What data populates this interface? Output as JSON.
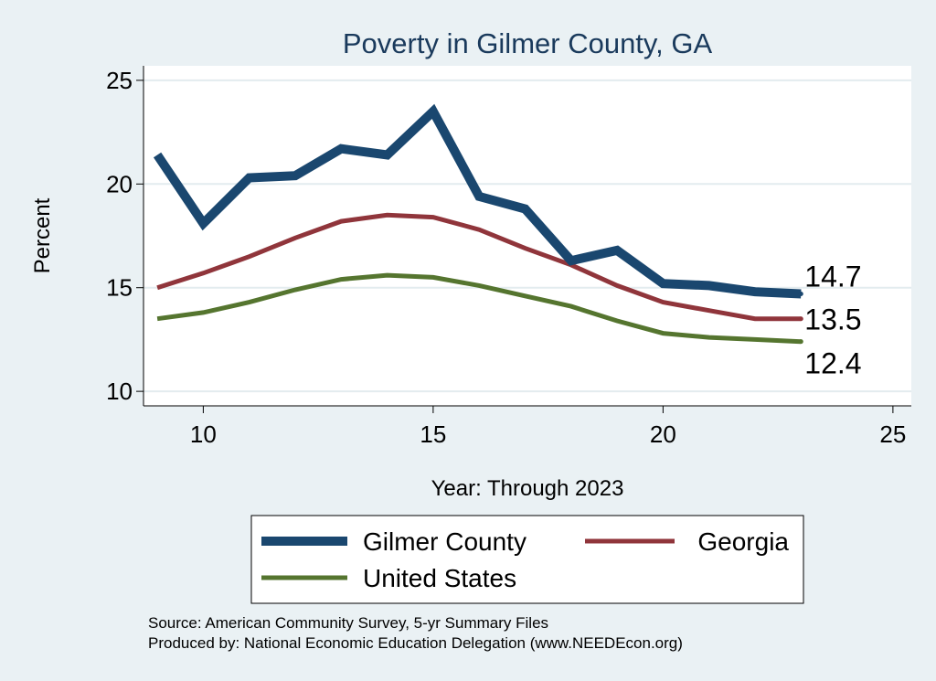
{
  "chart_data": {
    "type": "line",
    "title": "Poverty in Gilmer County, GA",
    "xlabel": "Year: Through 2023",
    "ylabel": "Percent",
    "xlim": [
      8.7,
      25.4
    ],
    "ylim": [
      9.3,
      25.7
    ],
    "xticks": [
      10,
      15,
      20,
      25
    ],
    "yticks": [
      10,
      15,
      20,
      25
    ],
    "grid": true,
    "legend_position": "bottom",
    "x": [
      9,
      10,
      11,
      12,
      13,
      14,
      15,
      16,
      17,
      18,
      19,
      20,
      21,
      22,
      23
    ],
    "series": [
      {
        "name": "Gilmer County",
        "color": "#1a476f",
        "values": [
          21.4,
          18.1,
          20.3,
          20.4,
          21.7,
          21.4,
          23.5,
          19.4,
          18.8,
          16.3,
          16.8,
          15.2,
          15.1,
          14.8,
          14.7
        ],
        "end_label": "14.7"
      },
      {
        "name": "Georgia",
        "color": "#90353b",
        "values": [
          15.0,
          15.7,
          16.5,
          17.4,
          18.2,
          18.5,
          18.4,
          17.8,
          16.9,
          16.1,
          15.1,
          14.3,
          13.9,
          13.5,
          13.5
        ],
        "end_label": "13.5"
      },
      {
        "name": "United States",
        "color": "#55752f",
        "values": [
          13.5,
          13.8,
          14.3,
          14.9,
          15.4,
          15.6,
          15.5,
          15.1,
          14.6,
          14.1,
          13.4,
          12.8,
          12.6,
          12.5,
          12.4
        ],
        "end_label": "12.4"
      }
    ]
  },
  "source_line": "Source: American Community Survey, 5-yr Summary Files",
  "produced_line": "Produced by: National Economic Education Delegation (www.NEEDEcon.org)"
}
